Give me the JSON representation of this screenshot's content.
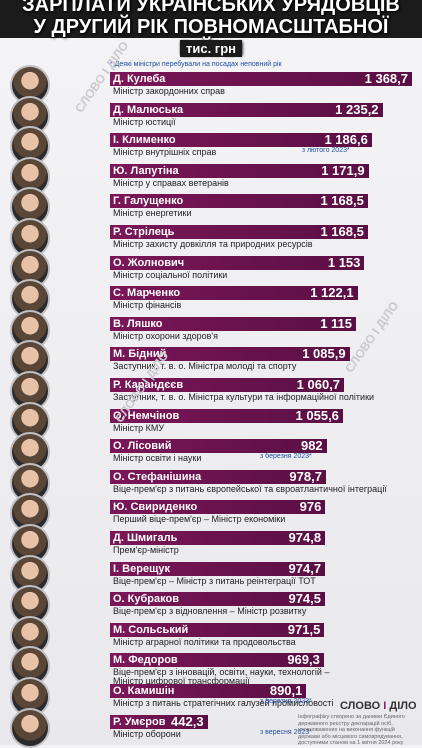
{
  "header": {
    "title_line1": "ЗАРПЛАТИ УКРАЇНСЬКИХ УРЯДОВЦІВ",
    "title_line2": "У ДРУГИЙ РІК ПОВНОМАСШТАБНОЇ ВІЙНИ",
    "unit": "тис. грн",
    "note": "* Деякі міністри перебували на посадах неповний рік"
  },
  "watermark": "СЛОВО І ДІЛО",
  "logo": {
    "text1": "СЛОВО",
    "sep": "І",
    "text2": "ДІЛО"
  },
  "footer": "Інфографіку створено за даними Єдиного державного реєстру декларацій осіб, уповноважених на виконання функцій держави або місцевого самоврядування, доступними станом на 1 квітня 2024 року",
  "colors": {
    "bar": "#6b1450",
    "note": "#1d4fa3"
  },
  "chart_data": {
    "type": "bar",
    "title": "ЗАРПЛАТИ УКРАЇНСЬКИХ УРЯДОВЦІВ У ДРУГИЙ РІК ПОВНОМАСШТАБНОЇ ВІЙНИ",
    "unit": "тис. грн",
    "orientation": "horizontal",
    "categories": [
      "Д. Кулеба",
      "Д. Малюська",
      "І. Клименко",
      "Ю. Лапутіна",
      "Г. Галущенко",
      "Р. Стрілець",
      "О. Жолнович",
      "С. Марченко",
      "В. Ляшко",
      "М. Бідний",
      "Р. Карандєєв",
      "О. Немчінов",
      "О. Лісовий",
      "О. Стефанішина",
      "Ю. Свириденко",
      "Д. Шмигаль",
      "І. Верещук",
      "О. Кубраков",
      "М. Сольський",
      "М. Федоров",
      "О. Камишін",
      "Р. Умєров"
    ],
    "values": [
      1368.7,
      1235.2,
      1186.6,
      1171.9,
      1168.5,
      1168.5,
      1153,
      1122.1,
      1115,
      1085.9,
      1060.7,
      1055.6,
      982,
      978.7,
      976,
      974.8,
      974.7,
      974.5,
      971.5,
      969.3,
      890.1,
      442.3
    ],
    "value_labels": [
      "1 368,7",
      "1 235,2",
      "1 186,6",
      "1 171,9",
      "1 168,5",
      "1 168,5",
      "1 153",
      "1 122,1",
      "1 115",
      "1 085,9",
      "1 060,7",
      "1 055,6",
      "982",
      "978,7",
      "976",
      "974,8",
      "974,7",
      "974,5",
      "971,5",
      "969,3",
      "890,1",
      "442,3"
    ],
    "roles": [
      [
        "Міністр закордонних справ"
      ],
      [
        "Міністр юстиції"
      ],
      [
        "Міністр внутрішніх справ"
      ],
      [
        "Міністр у справах ветеранів"
      ],
      [
        "Міністр енергетики"
      ],
      [
        "Міністр захисту довкілля та природних ресурсів"
      ],
      [
        "Міністр соціальної політики"
      ],
      [
        "Міністр фінансів"
      ],
      [
        "Міністр охорони здоров'я"
      ],
      [
        "Заступник, т. в. о. Міністра молоді та спорту"
      ],
      [
        "Заступник, т. в. о. Міністра культури та інформаційної політики"
      ],
      [
        "Міністр КМУ"
      ],
      [
        "Міністр освіти і науки"
      ],
      [
        "Віце-прем'єр з питань європейської та євроатлантичної інтеграції"
      ],
      [
        "Перший віце-прем'єр – Міністр економіки"
      ],
      [
        "Прем'єр-міністр"
      ],
      [
        "Віце-прем'єр – Міністр з питань реінтеграції ТОТ"
      ],
      [
        "Віце-прем'єр з відновлення – Міністр розвитку"
      ],
      [
        "Міністр аграрної політики та продовольства"
      ],
      [
        "Віце-прем'єр з інновацій, освіти, науки, технологій –",
        "Міністр цифрової трансформації"
      ],
      [
        "Міністр з питань стратегічних галузей промисловості"
      ],
      [
        "Міністр оборони"
      ]
    ],
    "dates": [
      "",
      "",
      "з лютого 2023*",
      "",
      "",
      "",
      "",
      "",
      "",
      "",
      "",
      "",
      "з березня 2023*",
      "",
      "",
      "",
      "",
      "",
      "",
      "",
      "з березня 2023*",
      "з вересня 2023*"
    ],
    "xlim": [
      0,
      1368.7
    ]
  }
}
